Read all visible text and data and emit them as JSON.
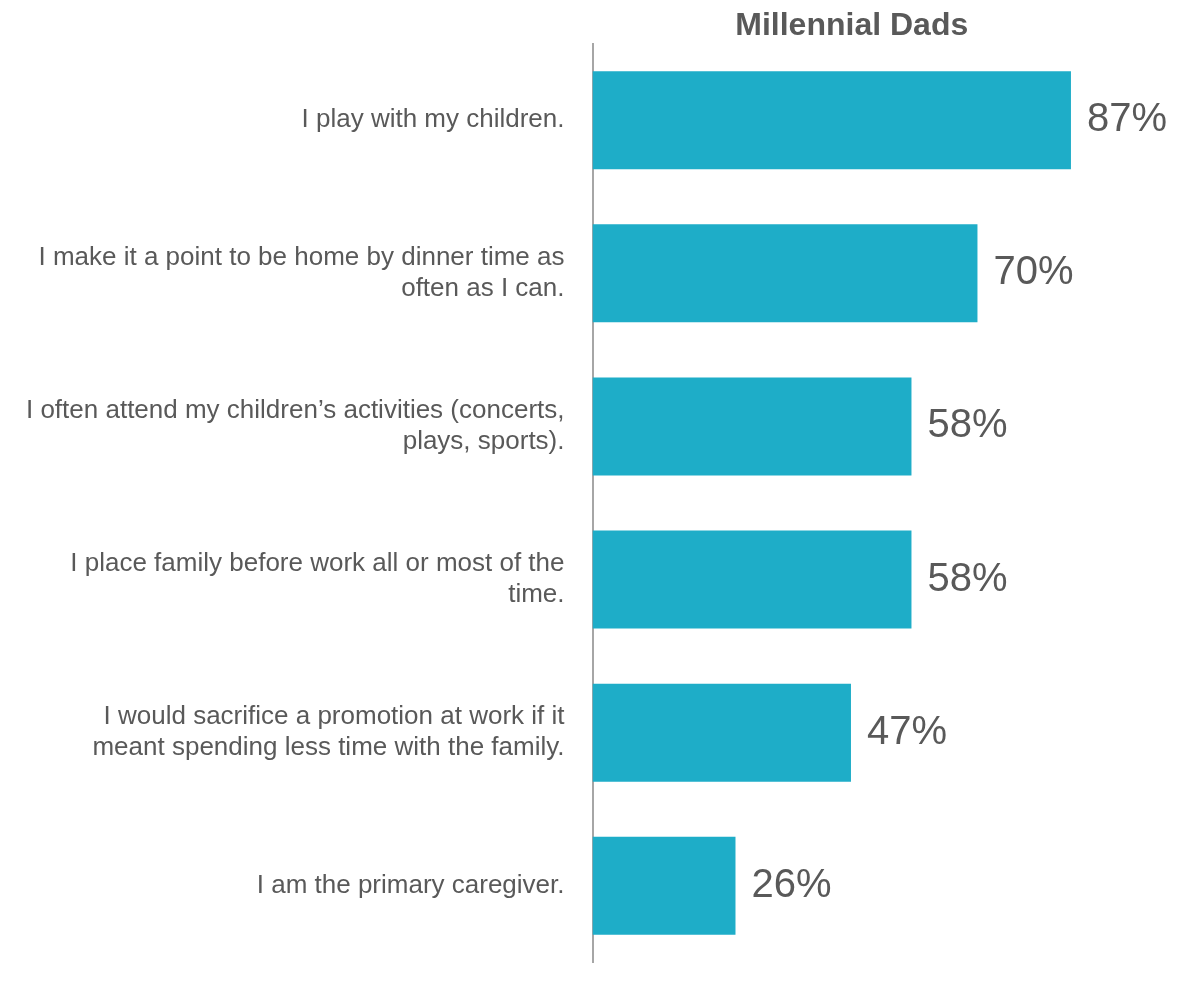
{
  "chart_data": {
    "type": "bar",
    "orientation": "horizontal",
    "title": "Millennial Dads",
    "categories": [
      "I play with my children.",
      "I make it a point to be home by dinner time as often as I can.",
      "I often attend my children’s activities (concerts, plays, sports).",
      "I place family before work all or most of the time.",
      "I would sacrifice a promotion at work if it meant spending less time with the family.",
      "I am the primary caregiver."
    ],
    "values": [
      87,
      70,
      58,
      58,
      47,
      26
    ],
    "value_labels": [
      "87%",
      "70%",
      "58%",
      "58%",
      "47%",
      "26%"
    ],
    "color": "#1eadc8",
    "grid": false,
    "legend": false
  }
}
